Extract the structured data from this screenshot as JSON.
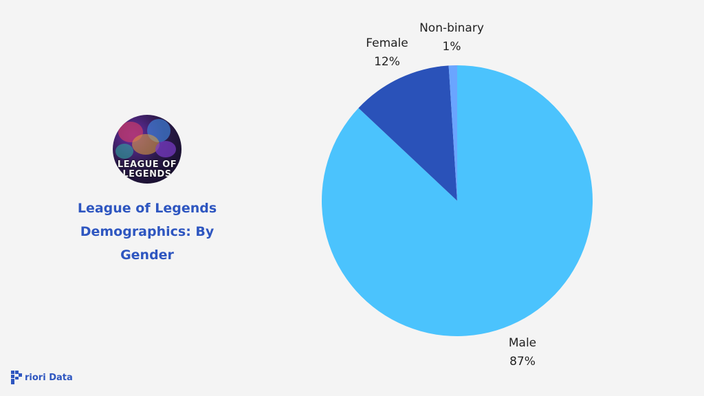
{
  "left_panel": {
    "logo_text_line1": "LEAGUE OF",
    "logo_text_line2": "LEGENDS",
    "title": "League of Legends Demographics: By Gender"
  },
  "brand": {
    "name": "riori Data",
    "accent_color": "#2e56c0"
  },
  "chart_data": {
    "type": "pie",
    "title": "League of Legends Demographics: By Gender",
    "slices": [
      {
        "label": "Male",
        "value": 87,
        "display": "87%",
        "color": "#4bc3fd"
      },
      {
        "label": "Female",
        "value": 12,
        "display": "12%",
        "color": "#2a52b9"
      },
      {
        "label": "Non-binary",
        "value": 1,
        "display": "1%",
        "color": "#6aa5ff"
      }
    ],
    "start_angle": "12 o'clock",
    "direction": "clockwise",
    "legend": "none"
  }
}
